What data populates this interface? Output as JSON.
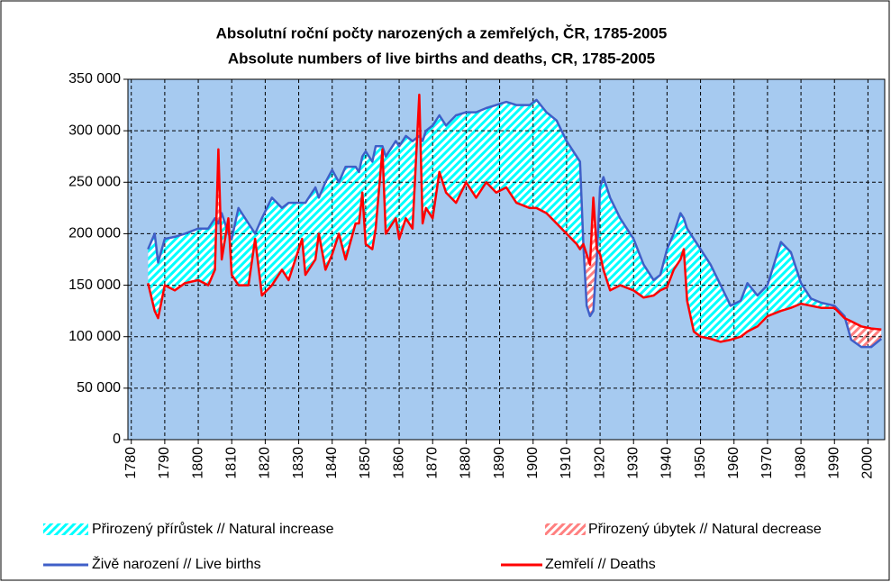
{
  "chart_data": {
    "type": "line",
    "title": "Absolutní roční počty narozených a zemřelých, ČR, 1785-2005",
    "subtitle": "Absolute numbers of live births and deaths, CR, 1785-2005",
    "x": [
      1785,
      1787,
      1788,
      1790,
      1793,
      1796,
      1800,
      1803,
      1805,
      1806,
      1807,
      1809,
      1810,
      1812,
      1815,
      1817,
      1819,
      1822,
      1825,
      1827,
      1831,
      1832,
      1835,
      1836,
      1838,
      1840,
      1842,
      1844,
      1847,
      1848,
      1849,
      1850,
      1852,
      1853,
      1855,
      1856,
      1859,
      1860,
      1862,
      1864,
      1866,
      1867,
      1868,
      1870,
      1872,
      1874,
      1877,
      1880,
      1883,
      1886,
      1889,
      1892,
      1895,
      1899,
      1901,
      1904,
      1907,
      1910,
      1913,
      1914,
      1915,
      1916,
      1917,
      1918,
      1919,
      1920,
      1921,
      1923,
      1926,
      1930,
      1933,
      1936,
      1938,
      1940,
      1942,
      1944,
      1945,
      1946,
      1948,
      1950,
      1953,
      1956,
      1959,
      1962,
      1964,
      1967,
      1970,
      1974,
      1977,
      1980,
      1983,
      1986,
      1990,
      1993,
      1995,
      1998,
      2001,
      2004
    ],
    "series": [
      {
        "name": "Živě narození // Live births",
        "color": "#3f5fc8",
        "values": [
          185000,
          200000,
          172000,
          195000,
          197000,
          200000,
          205000,
          205000,
          215000,
          210000,
          220000,
          200000,
          195000,
          225000,
          210000,
          200000,
          215000,
          235000,
          225000,
          230000,
          230000,
          230000,
          245000,
          235000,
          250000,
          262000,
          250000,
          265000,
          265000,
          260000,
          275000,
          280000,
          270000,
          285000,
          285000,
          275000,
          290000,
          285000,
          295000,
          290000,
          295000,
          290000,
          300000,
          305000,
          315000,
          305000,
          315000,
          318000,
          318000,
          322000,
          325000,
          328000,
          325000,
          325000,
          330000,
          318000,
          310000,
          290000,
          275000,
          270000,
          190000,
          130000,
          120000,
          125000,
          175000,
          245000,
          255000,
          235000,
          215000,
          195000,
          170000,
          155000,
          160000,
          185000,
          200000,
          220000,
          215000,
          205000,
          195000,
          185000,
          170000,
          150000,
          130000,
          135000,
          152000,
          140000,
          150000,
          192000,
          182000,
          152000,
          137000,
          133000,
          130000,
          120000,
          97000,
          90000,
          90000,
          98000
        ]
      },
      {
        "name": "Zemřelí // Deaths",
        "color": "#ff0000",
        "values": [
          152000,
          125000,
          118000,
          150000,
          145000,
          152000,
          155000,
          150000,
          165000,
          282000,
          175000,
          215000,
          160000,
          150000,
          150000,
          195000,
          140000,
          150000,
          165000,
          155000,
          195000,
          160000,
          175000,
          200000,
          165000,
          180000,
          200000,
          175000,
          210000,
          210000,
          240000,
          190000,
          185000,
          205000,
          282000,
          200000,
          215000,
          195000,
          215000,
          205000,
          335000,
          210000,
          225000,
          215000,
          260000,
          240000,
          230000,
          250000,
          235000,
          250000,
          240000,
          245000,
          230000,
          225000,
          225000,
          220000,
          210000,
          200000,
          190000,
          185000,
          190000,
          180000,
          170000,
          235000,
          185000,
          180000,
          165000,
          145000,
          150000,
          145000,
          138000,
          140000,
          145000,
          148000,
          165000,
          175000,
          185000,
          135000,
          105000,
          100000,
          98000,
          95000,
          97000,
          100000,
          105000,
          110000,
          120000,
          125000,
          128000,
          132000,
          130000,
          128000,
          128000,
          118000,
          115000,
          110000,
          108000,
          107000
        ]
      }
    ],
    "fills": [
      {
        "name": "Přirozený přírůstek // Natural increase",
        "color": "#00ffff"
      },
      {
        "name": "Přirozený úbytek // Natural decrease",
        "color": "#ff8080"
      }
    ],
    "xlim": [
      1779,
      2005
    ],
    "xticks": [
      1780,
      1790,
      1800,
      1810,
      1820,
      1830,
      1840,
      1850,
      1860,
      1870,
      1880,
      1890,
      1900,
      1910,
      1920,
      1930,
      1940,
      1950,
      1960,
      1970,
      1980,
      1990,
      2000
    ],
    "ylim": [
      0,
      350000
    ],
    "yticks": [
      0,
      {
        "value": 50000,
        "label": "50 000"
      },
      {
        "value": 100000,
        "label": "100 000"
      },
      {
        "value": 150000,
        "label": "150 000"
      },
      {
        "value": 200000,
        "label": "200 000"
      },
      {
        "value": 250000,
        "label": "250 000"
      },
      {
        "value": 300000,
        "label": "300 000"
      },
      {
        "value": 350000,
        "label": "350 000"
      }
    ],
    "grid": true,
    "plot_background": "#a6caf0"
  }
}
